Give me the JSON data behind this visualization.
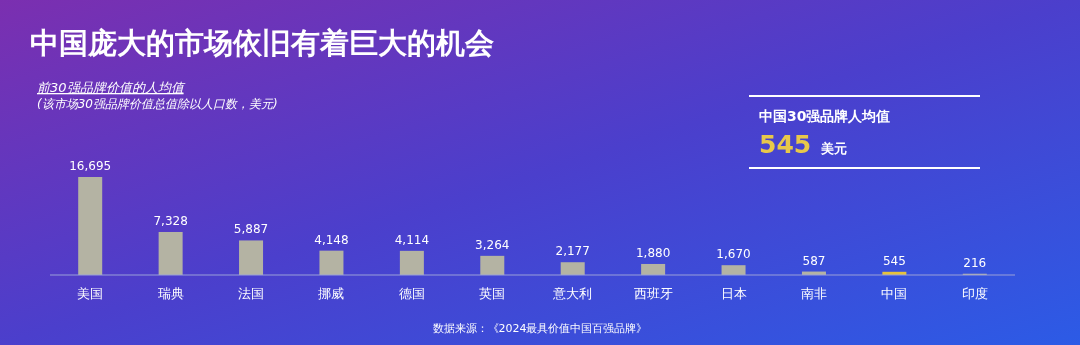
{
  "chart_data": {
    "type": "bar",
    "title": "中国庞大的市场依旧有着巨大的机会",
    "subtitle": "前30强品牌价值的人均值",
    "categories": [
      "美国",
      "瑞典",
      "法国",
      "挪威",
      "德国",
      "英国",
      "意大利",
      "西班牙",
      "日本",
      "南非",
      "中国",
      "印度"
    ],
    "values": [
      16695,
      7328,
      5887,
      4148,
      4114,
      3264,
      2177,
      1880,
      1670,
      587,
      545,
      216
    ],
    "colors": [
      "#b4b3a3",
      "#b4b3a3",
      "#b4b3a3",
      "#b4b3a3",
      "#b4b3a3",
      "#b4b3a3",
      "#b4b3a3",
      "#b4b3a3",
      "#b4b3a3",
      "#b4b3a3",
      "#e6c23c",
      "#b4b3a3"
    ],
    "value_labels": [
      "16,695",
      "7,328",
      "5,887",
      "4,148",
      "4,114",
      "3,264",
      "2,177",
      "1,880",
      "1,670",
      "587",
      "545",
      "216"
    ],
    "annotations": [
      "(该市场30强品牌价值总值除以人口数，美元)",
      "中国30强品牌人均值",
      "545",
      "美元",
      "数据来源：《2024最具价值中国百强品牌》"
    ]
  }
}
